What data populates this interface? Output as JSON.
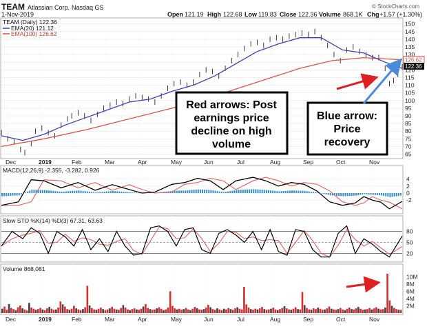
{
  "header": {
    "symbol": "TEAM",
    "company": "Atlassian Corp.",
    "exchange": "Nasdaq GS",
    "date": "1-Nov-2019",
    "open_label": "Open",
    "open": "121.19",
    "high_label": "High",
    "high": "122.68",
    "low_label": "Low",
    "low": "119.83",
    "close_label": "Close",
    "close": "122.36",
    "volume_label": "Volume",
    "volume": "868.1K",
    "chg_label": "Chg",
    "chg": "+1.57 (+1.30%)",
    "copyright": "© StockCharts.com"
  },
  "colors": {
    "price": "#222222",
    "ema20": "#3a3fb0",
    "ema100": "#d9534f",
    "macd_line": "#000000",
    "signal_line": "#e06060",
    "histogram": "#3a8fc8",
    "volume_bar": "#cc3333",
    "volume_bar_up": "#444444",
    "annotation_red": "#e02020",
    "annotation_blue": "#4a8ad8"
  },
  "legends": {
    "price_line": "TEAM (Daily) 122.36",
    "ema20": "EMA(20) 121.12",
    "ema100": "EMA(100) 126.62",
    "macd": "MACD(12,26,9) -2.355, -3.282, 0.926",
    "sto": "Slow STO %K(14) %D(3) 67.31, 63.63",
    "volume": "Volume 868,081"
  },
  "annotations": {
    "red_box_lines": [
      "Red arrows: Post",
      "earnings price",
      "decline on high",
      "volume"
    ],
    "blue_box_lines": [
      "Blue arrow:",
      "Price",
      "recovery"
    ]
  },
  "chart_data": {
    "type": "line",
    "title": "TEAM Atlassian Corp. Nasdaq GS",
    "x_months": [
      "Dec",
      "2019",
      "Feb",
      "Mar",
      "Apr",
      "May",
      "Jun",
      "Jul",
      "Aug",
      "Sep",
      "Oct",
      "Nov"
    ],
    "price_axis": {
      "ylim": [
        63,
        153
      ],
      "ticks": [
        65,
        70,
        75,
        80,
        85,
        90,
        95,
        100,
        105,
        110,
        115,
        120,
        125,
        130,
        135,
        140,
        145,
        150
      ]
    },
    "price_badges": {
      "ema100": "126.62",
      "close": "122.36"
    },
    "price_points": [
      [
        0,
        79
      ],
      [
        3,
        75
      ],
      [
        6,
        73
      ],
      [
        9,
        68
      ],
      [
        11,
        66
      ],
      [
        14,
        72
      ],
      [
        16,
        80
      ],
      [
        19,
        82
      ],
      [
        22,
        79
      ],
      [
        25,
        77
      ],
      [
        28,
        84
      ],
      [
        31,
        88
      ],
      [
        33,
        90
      ],
      [
        36,
        92
      ],
      [
        39,
        90
      ],
      [
        42,
        87
      ],
      [
        45,
        91
      ],
      [
        48,
        95
      ],
      [
        51,
        97
      ],
      [
        54,
        99
      ],
      [
        57,
        98
      ],
      [
        60,
        101
      ],
      [
        63,
        103
      ],
      [
        66,
        102
      ],
      [
        69,
        101
      ],
      [
        72,
        99
      ],
      [
        75,
        103
      ],
      [
        78,
        108
      ],
      [
        81,
        111
      ],
      [
        84,
        112
      ],
      [
        87,
        110
      ],
      [
        90,
        112
      ],
      [
        93,
        117
      ],
      [
        96,
        120
      ],
      [
        99,
        119
      ],
      [
        102,
        116
      ],
      [
        105,
        121
      ],
      [
        108,
        126
      ],
      [
        111,
        130
      ],
      [
        114,
        134
      ],
      [
        117,
        137
      ],
      [
        120,
        138
      ],
      [
        123,
        136
      ],
      [
        126,
        140
      ],
      [
        129,
        141
      ],
      [
        132,
        140
      ],
      [
        135,
        142
      ],
      [
        138,
        143
      ],
      [
        141,
        144
      ],
      [
        144,
        143
      ],
      [
        147,
        145
      ],
      [
        150,
        141
      ],
      [
        153,
        136
      ],
      [
        156,
        130
      ],
      [
        159,
        126
      ],
      [
        162,
        133
      ],
      [
        165,
        135
      ],
      [
        168,
        132
      ],
      [
        171,
        130
      ],
      [
        174,
        128
      ],
      [
        177,
        128
      ],
      [
        180,
        121
      ],
      [
        182,
        111
      ],
      [
        184,
        113
      ],
      [
        186,
        117
      ],
      [
        188,
        122
      ]
    ],
    "ema20_points": [
      [
        0,
        77
      ],
      [
        10,
        74
      ],
      [
        20,
        78
      ],
      [
        30,
        84
      ],
      [
        40,
        89
      ],
      [
        50,
        94
      ],
      [
        60,
        99
      ],
      [
        70,
        101
      ],
      [
        80,
        106
      ],
      [
        90,
        110
      ],
      [
        100,
        116
      ],
      [
        110,
        124
      ],
      [
        120,
        132
      ],
      [
        130,
        137
      ],
      [
        140,
        141
      ],
      [
        150,
        141
      ],
      [
        160,
        133
      ],
      [
        170,
        131
      ],
      [
        180,
        125
      ],
      [
        188,
        121
      ]
    ],
    "ema100_points": [
      [
        0,
        70
      ],
      [
        20,
        75
      ],
      [
        40,
        81
      ],
      [
        60,
        88
      ],
      [
        80,
        95
      ],
      [
        100,
        103
      ],
      [
        120,
        112
      ],
      [
        140,
        121
      ],
      [
        155,
        126
      ],
      [
        170,
        128
      ],
      [
        188,
        126.6
      ]
    ],
    "macd": {
      "ylim": [
        -5.5,
        5.5
      ],
      "ticks": [
        -2,
        0,
        2,
        4
      ],
      "values": {
        "macd": -2.355,
        "signal": -3.282,
        "histogram": 0.926
      },
      "macd_points": [
        [
          0,
          -3.5
        ],
        [
          8,
          -2.5
        ],
        [
          14,
          3.8
        ],
        [
          20,
          3.5
        ],
        [
          28,
          1.5
        ],
        [
          36,
          3.0
        ],
        [
          44,
          0.8
        ],
        [
          52,
          2.4
        ],
        [
          60,
          1.0
        ],
        [
          66,
          0.0
        ],
        [
          72,
          0.3
        ],
        [
          80,
          2.5
        ],
        [
          86,
          3.0
        ],
        [
          92,
          4.2
        ],
        [
          98,
          3.5
        ],
        [
          104,
          1.0
        ],
        [
          110,
          3.5
        ],
        [
          118,
          4.5
        ],
        [
          124,
          3.5
        ],
        [
          130,
          2.0
        ],
        [
          136,
          3.0
        ],
        [
          142,
          2.5
        ],
        [
          148,
          0.6
        ],
        [
          154,
          -2.5
        ],
        [
          160,
          -3.5
        ],
        [
          166,
          -2.8
        ],
        [
          170,
          -1.0
        ],
        [
          174,
          -2.0
        ],
        [
          178,
          -2.6
        ],
        [
          182,
          -4.5
        ],
        [
          188,
          -2.355
        ]
      ]
    },
    "sto": {
      "ylim": [
        0,
        100
      ],
      "ticks": [
        20,
        50,
        80
      ],
      "values": {
        "k": 67.31,
        "d": 63.63
      },
      "k_points": [
        [
          0,
          40
        ],
        [
          5,
          80
        ],
        [
          10,
          60
        ],
        [
          14,
          90
        ],
        [
          18,
          75
        ],
        [
          22,
          20
        ],
        [
          26,
          80
        ],
        [
          30,
          65
        ],
        [
          34,
          40
        ],
        [
          38,
          85
        ],
        [
          42,
          30
        ],
        [
          46,
          60
        ],
        [
          50,
          25
        ],
        [
          54,
          80
        ],
        [
          58,
          40
        ],
        [
          62,
          15
        ],
        [
          66,
          20
        ],
        [
          70,
          90
        ],
        [
          74,
          95
        ],
        [
          78,
          80
        ],
        [
          82,
          40
        ],
        [
          86,
          85
        ],
        [
          90,
          90
        ],
        [
          94,
          30
        ],
        [
          98,
          20
        ],
        [
          102,
          75
        ],
        [
          106,
          85
        ],
        [
          110,
          70
        ],
        [
          114,
          50
        ],
        [
          118,
          80
        ],
        [
          122,
          30
        ],
        [
          126,
          85
        ],
        [
          130,
          25
        ],
        [
          134,
          15
        ],
        [
          138,
          85
        ],
        [
          142,
          80
        ],
        [
          146,
          30
        ],
        [
          150,
          10
        ],
        [
          154,
          10
        ],
        [
          158,
          75
        ],
        [
          162,
          95
        ],
        [
          166,
          20
        ],
        [
          170,
          60
        ],
        [
          174,
          45
        ],
        [
          178,
          25
        ],
        [
          182,
          10
        ],
        [
          188,
          67.31
        ]
      ]
    },
    "volume": {
      "ylim": [
        0,
        11
      ],
      "ticks": [
        "2M",
        "4M",
        "6M",
        "8M",
        "10M"
      ],
      "last": 868081,
      "bars_millions": [
        1.2,
        1.8,
        0.9,
        2.5,
        1.4,
        1.1,
        0.8,
        1.6,
        2.1,
        1.3,
        1.0,
        0.7,
        2.8,
        1.5,
        1.2,
        0.9,
        1.1,
        1.4,
        1.0,
        0.8,
        1.3,
        1.7,
        1.2,
        0.9,
        1.0,
        1.5,
        3.2,
        2.4,
        1.8,
        1.1,
        0.9,
        1.2,
        2.0,
        1.3,
        1.0,
        0.8,
        1.1,
        1.6,
        7.5,
        2.1,
        1.4,
        1.0,
        0.9,
        1.2,
        1.5,
        1.1,
        0.8,
        1.0,
        1.3,
        1.7,
        1.2,
        1.0,
        0.9,
        1.4,
        2.2,
        1.5,
        1.0,
        0.8,
        1.1,
        1.3,
        1.0,
        0.9,
        1.2,
        1.8,
        2.5,
        1.4,
        1.1,
        0.9,
        1.0,
        1.3,
        1.6,
        1.2,
        0.8,
        1.0,
        1.5,
        6.0,
        2.0,
        1.3,
        1.0,
        1.2,
        0.9,
        1.1,
        1.4,
        1.0,
        0.8,
        1.2,
        1.7,
        1.3,
        1.0,
        0.9,
        1.1,
        1.5,
        2.3,
        1.6,
        1.1,
        0.9,
        1.3,
        1.0,
        0.8,
        1.2,
        1.0,
        1.4,
        1.1,
        0.9,
        1.3,
        1.6,
        1.2,
        1.0,
        7.2,
        2.4,
        1.5,
        1.1,
        0.9,
        1.2,
        1.0,
        1.3,
        1.7,
        1.1,
        0.9,
        1.0,
        1.2,
        1.5,
        1.0,
        0.8,
        1.1,
        1.4,
        1.9,
        1.3,
        1.0,
        0.9,
        1.2,
        1.6,
        1.1,
        1.0,
        5.8,
        2.2,
        1.4,
        1.0,
        0.9,
        1.3,
        1.1,
        1.5,
        1.2,
        0.9,
        1.0,
        1.3,
        1.8,
        1.2,
        1.0,
        0.9,
        1.1,
        1.4,
        1.0,
        0.8,
        1.2,
        1.5,
        1.1,
        1.0,
        1.3,
        1.7,
        1.2,
        0.9,
        1.0,
        1.1,
        1.4,
        1.0,
        1.3,
        1.6,
        1.2,
        1.0,
        1.1,
        1.5,
        10.8,
        3.5,
        2.0,
        1.4,
        1.1,
        0.9,
        0.87
      ]
    }
  }
}
